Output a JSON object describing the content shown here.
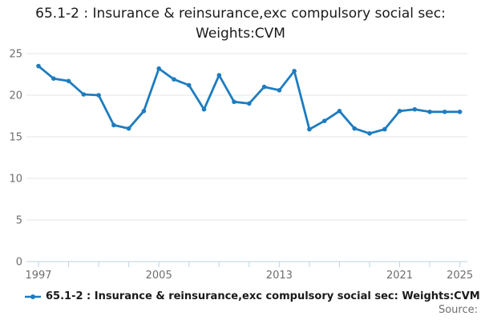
{
  "title": "65.1-2 : Insurance & reinsurance,exc compulsory social sec: Weights:CVM",
  "legend": {
    "label": "65.1-2 : Insurance & reinsurance,exc compulsory social sec: Weights:CVM"
  },
  "source_label": "Source:",
  "colors": {
    "line": "#1d7cbf",
    "grid": "#e6e6e6",
    "axis": "#bed3e2",
    "tick_label": "#6e6e6e",
    "title_text": "#1a1a1a"
  },
  "chart_data": {
    "type": "line",
    "title": "65.1-2 : Insurance & reinsurance,exc compulsory social sec: Weights:CVM",
    "xlabel": "",
    "ylabel": "",
    "x": [
      1997,
      1998,
      1999,
      2000,
      2001,
      2002,
      2003,
      2004,
      2005,
      2006,
      2007,
      2008,
      2009,
      2010,
      2011,
      2012,
      2013,
      2014,
      2015,
      2016,
      2017,
      2018,
      2019,
      2020,
      2021,
      2022,
      2023,
      2024,
      2025
    ],
    "series": [
      {
        "name": "65.1-2 : Insurance & reinsurance,exc compulsory social sec: Weights:CVM",
        "values": [
          23.5,
          22.0,
          21.7,
          20.1,
          20.0,
          16.4,
          16.0,
          18.1,
          23.2,
          21.9,
          21.2,
          18.3,
          22.4,
          19.2,
          19.0,
          21.0,
          20.6,
          22.9,
          15.9,
          16.9,
          18.1,
          16.0,
          15.4,
          15.9,
          18.1,
          18.3,
          18.0,
          18.0,
          18.0
        ]
      }
    ],
    "ylim": [
      0,
      25
    ],
    "xlim": [
      1996.2,
      2025.5
    ],
    "yticks": [
      0,
      5,
      10,
      15,
      20,
      25
    ],
    "xticks": [
      1997,
      1999,
      2001,
      2003,
      2005,
      2007,
      2009,
      2011,
      2013,
      2015,
      2017,
      2019,
      2021,
      2023,
      2025
    ],
    "xtick_labels_shown": [
      1997,
      2005,
      2013,
      2021,
      2025
    ],
    "grid": "horizontal",
    "legend_position": "bottom-left",
    "marker": "circle"
  }
}
